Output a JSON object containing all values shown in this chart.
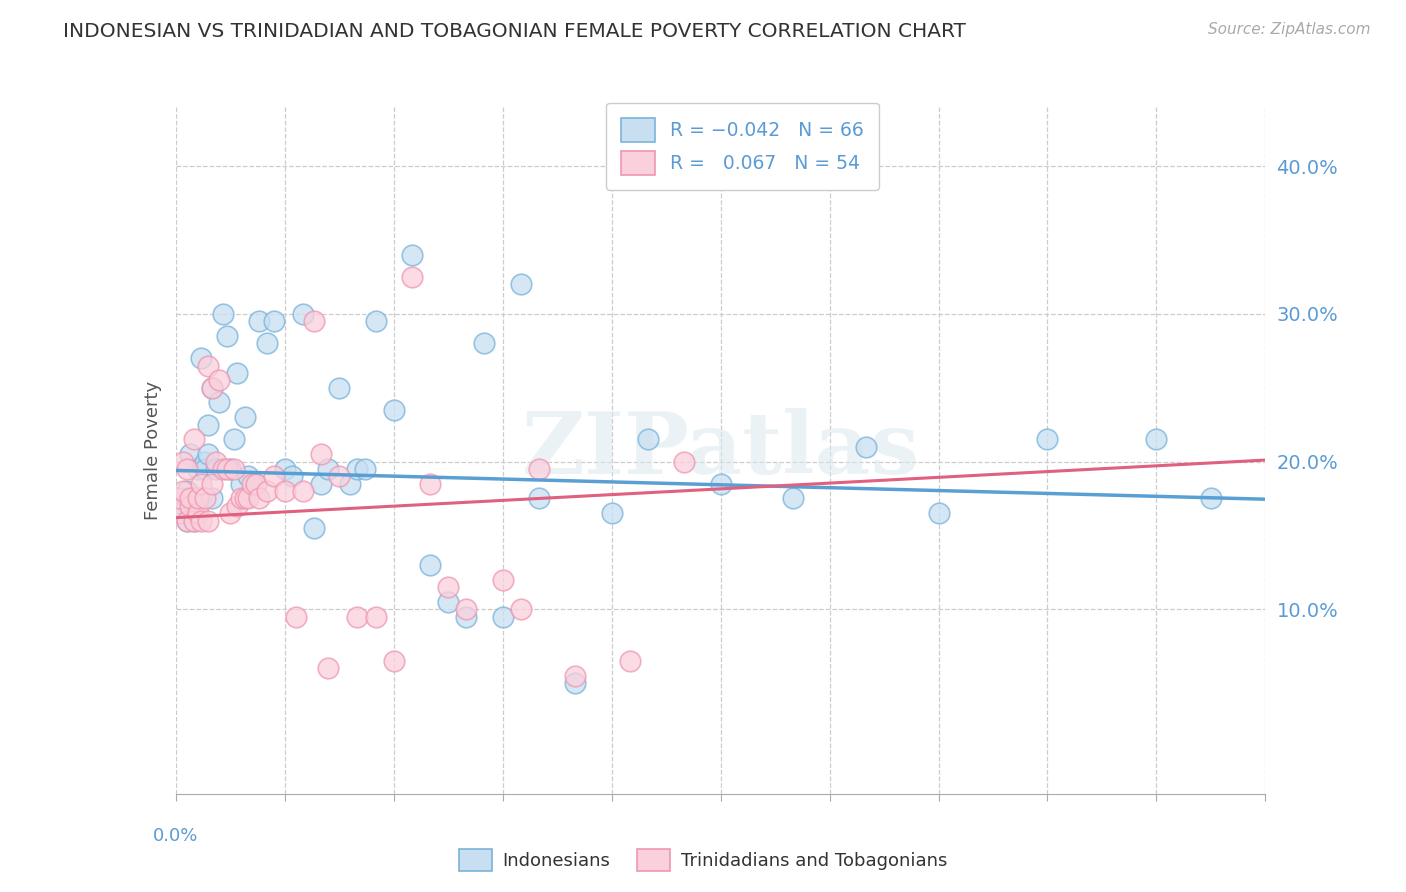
{
  "title": "INDONESIAN VS TRINIDADIAN AND TOBAGONIAN FEMALE POVERTY CORRELATION CHART",
  "source": "Source: ZipAtlas.com",
  "ylabel": "Female Poverty",
  "ytick_vals": [
    0.1,
    0.2,
    0.3,
    0.4
  ],
  "xlim": [
    0.0,
    0.3
  ],
  "ylim": [
    -0.025,
    0.44
  ],
  "legend_label_indonesians": "Indonesians",
  "legend_label_trinidadians": "Trinidadians and Tobagonians",
  "blue_color": "#7ab3d9",
  "pink_color": "#f096b0",
  "trend_blue_color": "#5a9fd4",
  "trend_pink_color": "#e06080",
  "blue_intercept": 0.194,
  "blue_slope": -0.065,
  "pink_intercept": 0.162,
  "pink_slope": 0.13,
  "indonesian_x": [
    0.001,
    0.001,
    0.002,
    0.002,
    0.003,
    0.003,
    0.003,
    0.004,
    0.004,
    0.005,
    0.005,
    0.005,
    0.006,
    0.006,
    0.007,
    0.007,
    0.008,
    0.008,
    0.009,
    0.009,
    0.01,
    0.01,
    0.011,
    0.012,
    0.013,
    0.014,
    0.015,
    0.016,
    0.017,
    0.018,
    0.019,
    0.02,
    0.022,
    0.023,
    0.025,
    0.027,
    0.03,
    0.032,
    0.035,
    0.038,
    0.04,
    0.042,
    0.045,
    0.048,
    0.05,
    0.052,
    0.055,
    0.06,
    0.065,
    0.07,
    0.075,
    0.08,
    0.085,
    0.09,
    0.095,
    0.1,
    0.11,
    0.12,
    0.13,
    0.15,
    0.17,
    0.19,
    0.21,
    0.24,
    0.27,
    0.285
  ],
  "indonesian_y": [
    0.165,
    0.175,
    0.17,
    0.165,
    0.16,
    0.175,
    0.18,
    0.165,
    0.205,
    0.16,
    0.17,
    0.175,
    0.17,
    0.195,
    0.175,
    0.27,
    0.2,
    0.195,
    0.205,
    0.225,
    0.175,
    0.25,
    0.195,
    0.24,
    0.3,
    0.285,
    0.195,
    0.215,
    0.26,
    0.185,
    0.23,
    0.19,
    0.185,
    0.295,
    0.28,
    0.295,
    0.195,
    0.19,
    0.3,
    0.155,
    0.185,
    0.195,
    0.25,
    0.185,
    0.195,
    0.195,
    0.295,
    0.235,
    0.34,
    0.13,
    0.105,
    0.095,
    0.28,
    0.095,
    0.32,
    0.175,
    0.05,
    0.165,
    0.215,
    0.185,
    0.175,
    0.21,
    0.165,
    0.215,
    0.215,
    0.175
  ],
  "trinidadian_x": [
    0.001,
    0.001,
    0.002,
    0.002,
    0.003,
    0.003,
    0.004,
    0.004,
    0.005,
    0.005,
    0.006,
    0.006,
    0.007,
    0.007,
    0.008,
    0.009,
    0.009,
    0.01,
    0.01,
    0.011,
    0.012,
    0.013,
    0.014,
    0.015,
    0.016,
    0.017,
    0.018,
    0.019,
    0.02,
    0.021,
    0.022,
    0.023,
    0.025,
    0.027,
    0.03,
    0.033,
    0.035,
    0.038,
    0.04,
    0.042,
    0.045,
    0.05,
    0.055,
    0.06,
    0.065,
    0.07,
    0.075,
    0.08,
    0.09,
    0.095,
    0.1,
    0.11,
    0.125,
    0.14
  ],
  "trinidadian_y": [
    0.165,
    0.175,
    0.18,
    0.2,
    0.16,
    0.195,
    0.17,
    0.175,
    0.16,
    0.215,
    0.165,
    0.175,
    0.16,
    0.185,
    0.175,
    0.16,
    0.265,
    0.185,
    0.25,
    0.2,
    0.255,
    0.195,
    0.195,
    0.165,
    0.195,
    0.17,
    0.175,
    0.175,
    0.175,
    0.185,
    0.185,
    0.175,
    0.18,
    0.19,
    0.18,
    0.095,
    0.18,
    0.295,
    0.205,
    0.06,
    0.19,
    0.095,
    0.095,
    0.065,
    0.325,
    0.185,
    0.115,
    0.1,
    0.12,
    0.1,
    0.195,
    0.055,
    0.065,
    0.2
  ]
}
